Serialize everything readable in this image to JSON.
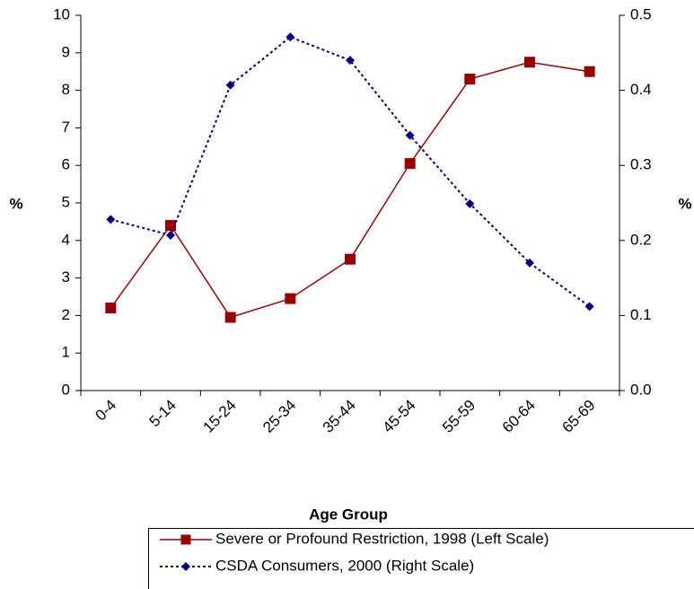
{
  "chart_data": {
    "type": "line",
    "categories": [
      "0-4",
      "5-14",
      "15-24",
      "25-34",
      "35-44",
      "45-54",
      "55-59",
      "60-64",
      "65-69"
    ],
    "series": [
      {
        "name": "Severe or Profound Restriction, 1998 (Left Scale)",
        "color": "#990000",
        "marker": "square",
        "values": [
          2.2,
          4.4,
          1.95,
          2.45,
          3.5,
          6.05,
          8.3,
          8.75,
          8.5
        ]
      },
      {
        "name": "CSDA Consumers, 2000 (Right Scale)",
        "color": "#000080",
        "marker": "diamond",
        "dashed": true,
        "axis": "y2",
        "values": [
          0.228,
          0.207,
          0.407,
          0.471,
          0.44,
          0.34,
          0.249,
          0.17,
          0.112
        ]
      }
    ],
    "xlabel": "Age Group",
    "ylabel": "%",
    "y2label": "%",
    "ylim": [
      0,
      10
    ],
    "yticks": [
      0,
      1,
      2,
      3,
      4,
      5,
      6,
      7,
      8,
      9,
      10
    ],
    "y2lim": [
      0,
      0.5
    ],
    "y2ticks": [
      {
        "value": 0,
        "label": "0.0"
      },
      0.1,
      0.2,
      0.3,
      0.4,
      0.5
    ],
    "grid": false
  }
}
